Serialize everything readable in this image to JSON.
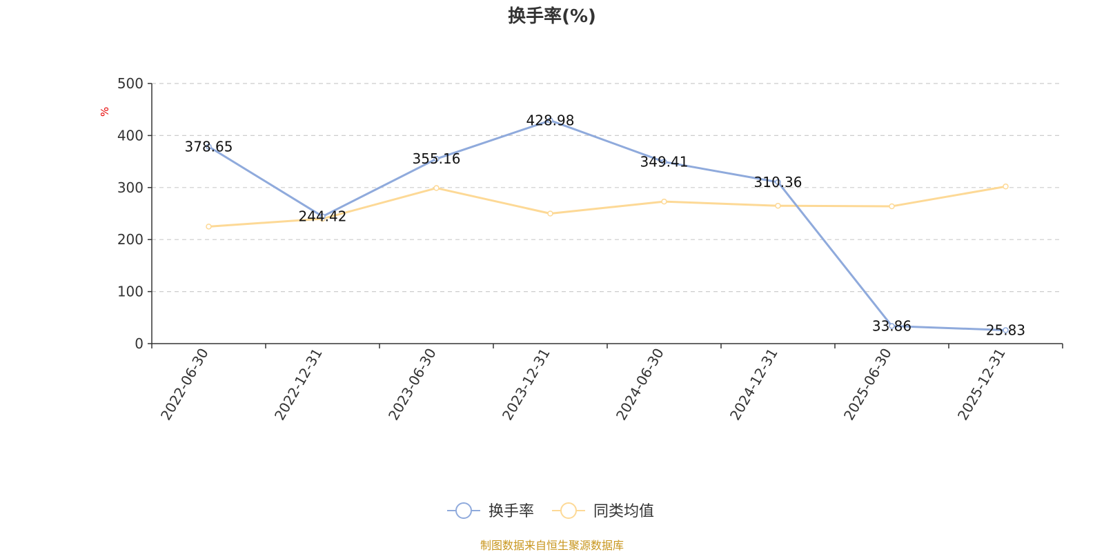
{
  "chart_data": {
    "type": "line",
    "title": "换手率(%)",
    "y_unit": "%",
    "categories": [
      "2022-06-30",
      "2022-12-31",
      "2023-06-30",
      "2023-12-31",
      "2024-06-30",
      "2024-12-31",
      "2025-06-30",
      "2025-12-31"
    ],
    "series": [
      {
        "name": "换手率",
        "color": "#8faadc",
        "values": [
          378.65,
          244.42,
          355.16,
          428.98,
          349.41,
          310.36,
          33.86,
          25.83
        ],
        "labels": [
          "378.65",
          "244.42",
          "355.16",
          "428.98",
          "349.41",
          "310.36",
          "33.86",
          "25.83"
        ]
      },
      {
        "name": "同类均值",
        "color": "#fdd996",
        "values": [
          225,
          240,
          299,
          250,
          273,
          265,
          264,
          302
        ]
      }
    ],
    "ylim": [
      0,
      500
    ],
    "yticks": [
      0,
      100,
      200,
      300,
      400,
      500
    ],
    "grid": true,
    "legend_position": "bottom-center"
  },
  "source_note": "制图数据来自恒生聚源数据库",
  "colors": {
    "unit_label": "#e60000",
    "source_note": "#c8961e",
    "axis": "#333333",
    "grid": "#cccccc"
  }
}
